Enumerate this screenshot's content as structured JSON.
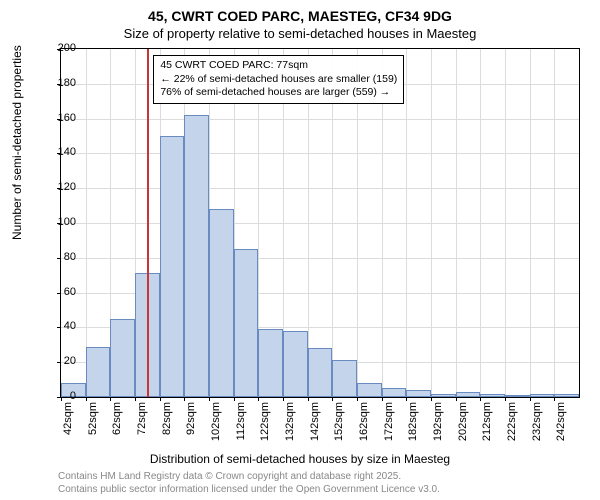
{
  "title_line1": "45, CWRT COED PARC, MAESTEG, CF34 9DG",
  "title_line2": "Size of property relative to semi-detached houses in Maesteg",
  "ylabel": "Number of semi-detached properties",
  "xlabel": "Distribution of semi-detached houses by size in Maesteg",
  "footer_line1": "Contains HM Land Registry data © Crown copyright and database right 2025.",
  "footer_line2": "Contains public sector information licensed under the Open Government Licence v3.0.",
  "annotation": {
    "line1": "45 CWRT COED PARC: 77sqm",
    "line2": "← 22% of semi-detached houses are smaller (159)",
    "line3": "76% of semi-detached houses are larger (559) →"
  },
  "chart": {
    "type": "histogram",
    "categories": [
      "42sqm",
      "52sqm",
      "62sqm",
      "72sqm",
      "82sqm",
      "92sqm",
      "102sqm",
      "112sqm",
      "122sqm",
      "132sqm",
      "142sqm",
      "152sqm",
      "162sqm",
      "172sqm",
      "182sqm",
      "192sqm",
      "202sqm",
      "212sqm",
      "222sqm",
      "232sqm",
      "242sqm"
    ],
    "values": [
      8,
      29,
      45,
      71,
      150,
      162,
      108,
      85,
      39,
      38,
      28,
      21,
      8,
      5,
      4,
      2,
      3,
      2,
      1,
      2,
      2
    ],
    "bar_fill": "#c4d4eb",
    "bar_border": "#6a8bc0",
    "ref_line_x_sqm": 77,
    "ref_line_color": "#cc3333",
    "ylim": [
      0,
      200
    ],
    "ytick_step": 20,
    "x_start": 42,
    "x_step": 10,
    "grid_color": "#dcdcdc",
    "background_color": "#ffffff",
    "title_fontsize": 14,
    "label_fontsize": 12,
    "tick_fontsize": 11
  }
}
